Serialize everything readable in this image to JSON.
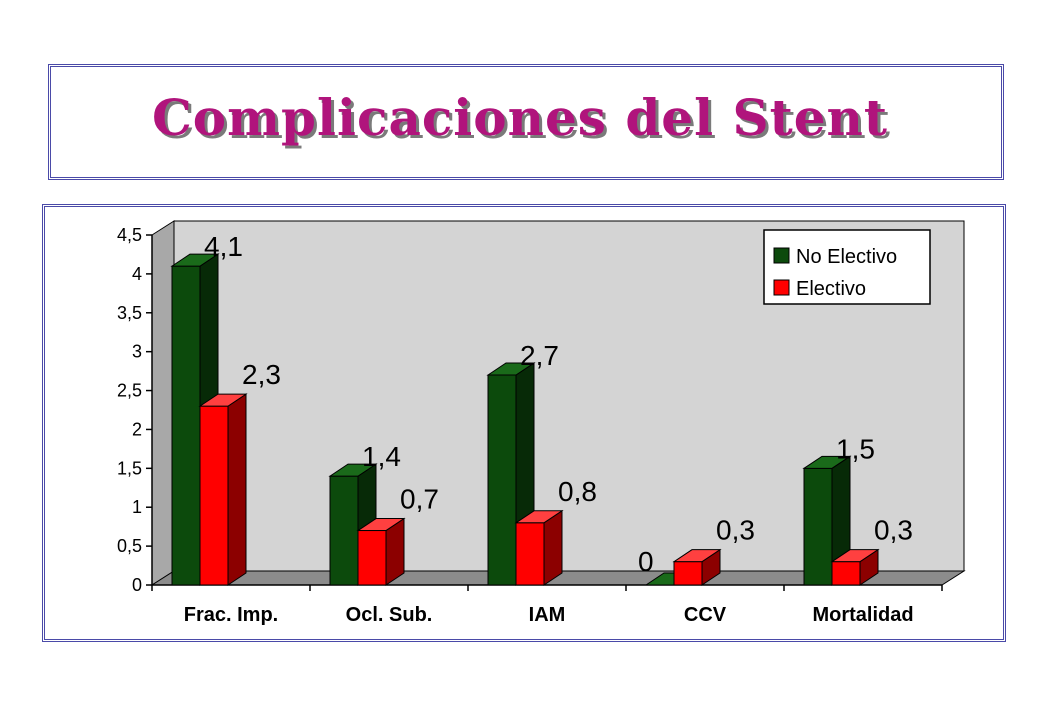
{
  "title": "Complicaciones del Stent",
  "chart_data": {
    "type": "bar",
    "categories": [
      "Frac. Imp.",
      "Ocl. Sub.",
      "IAM",
      "CCV",
      "Mortalidad"
    ],
    "series": [
      {
        "name": "No Electivo",
        "values": [
          4.1,
          1.4,
          2.7,
          0,
          1.5
        ],
        "labels": [
          "4,1",
          "1,4",
          "2,7",
          "0",
          "1,5"
        ],
        "color": "#0c4a0c"
      },
      {
        "name": "Electivo",
        "values": [
          2.3,
          0.7,
          0.8,
          0.3,
          0.3
        ],
        "labels": [
          "2,3",
          "0,7",
          "0,8",
          "0,3",
          "0,3"
        ],
        "color": "#ff0000"
      }
    ],
    "ylim": [
      0,
      4.5
    ],
    "yticks": [
      0,
      0.5,
      1,
      1.5,
      2,
      2.5,
      3,
      3.5,
      4,
      4.5
    ],
    "ytick_labels": [
      "0",
      "0,5",
      "1",
      "1,5",
      "2",
      "2,5",
      "3",
      "3,5",
      "4",
      "4,5"
    ],
    "legend": "top-right",
    "grid": false,
    "style": "3d",
    "background_color": "#d4d4d4"
  }
}
